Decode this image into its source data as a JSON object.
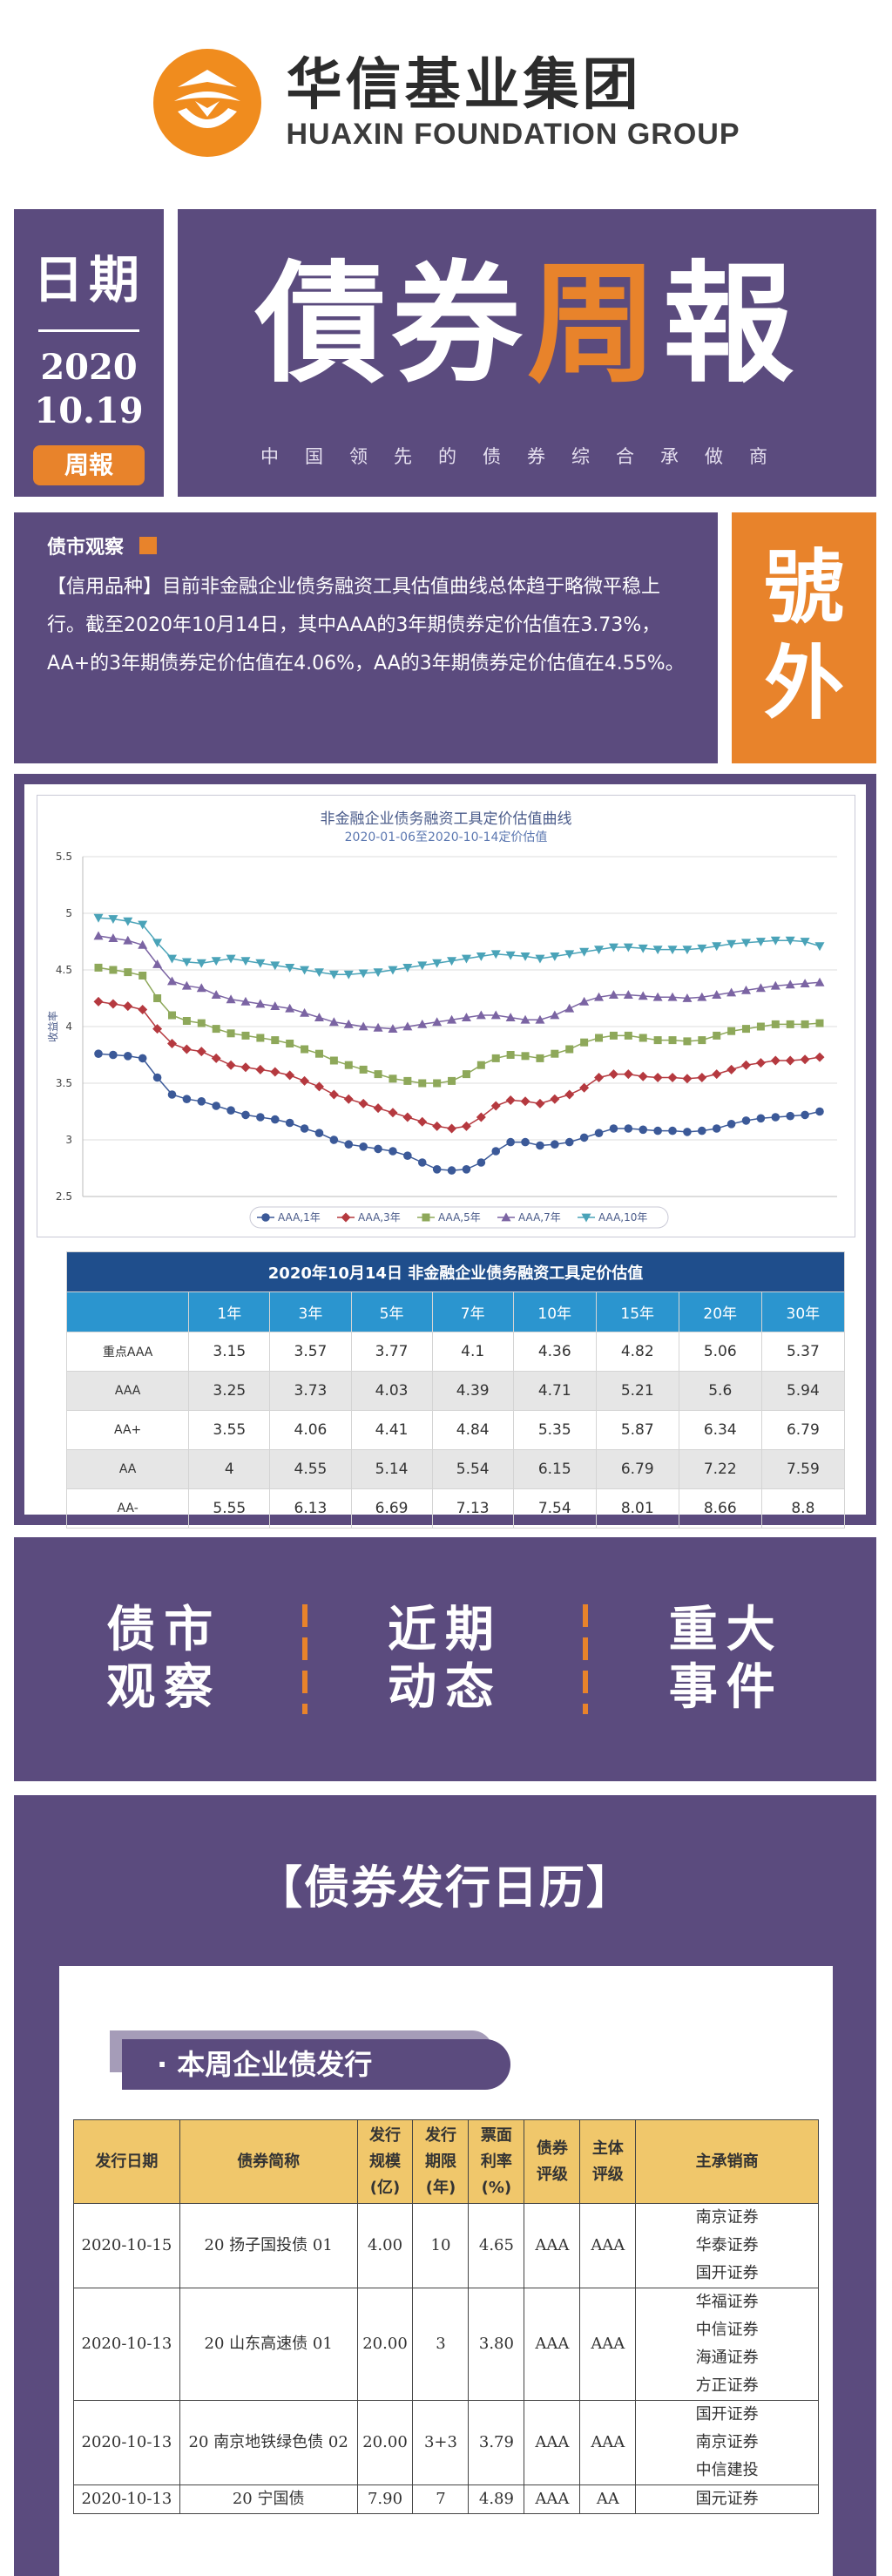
{
  "header": {
    "brand_cn": "华信基业集团",
    "brand_en": "HUAXIN FOUNDATION GROUP",
    "brand_color": "#f08c1e"
  },
  "banner": {
    "date_label": "日期",
    "year": "2020",
    "month_day": "10.19",
    "tag": "周報",
    "title_part1": "債券",
    "title_accent": "周",
    "title_part2": "報",
    "subtitle": "中国领先的债券综合承做商",
    "side_tag": "號外"
  },
  "observation": {
    "heading": "债市观察",
    "text": "【信用品种】目前非金融企业债务融资工具估值曲线总体趋于略微平稳上行。截至2020年10月14日，其中AAA的3年期债券定价估值在3.73%，AA+的3年期债券定价估值在4.06%，AA的3年期债券定价估值在4.55%。"
  },
  "chart_data": {
    "type": "line",
    "title": "非金融企业债务融资工具定价估值曲线",
    "subtitle": "2020-01-06至2020-10-14定价估值",
    "ylabel": "收益率",
    "xlabel": "",
    "ylim": [
      2.5,
      5.5
    ],
    "yticks": [
      "5.5",
      "5",
      "4.5",
      "4",
      "3.5",
      "3",
      "2.5"
    ],
    "grid": true,
    "legend": "bottom",
    "series": [
      {
        "name": "AAA,1年",
        "color": "#3b5998",
        "marker": "circle",
        "values": [
          3.76,
          3.75,
          3.74,
          3.72,
          3.55,
          3.4,
          3.36,
          3.34,
          3.3,
          3.26,
          3.22,
          3.2,
          3.18,
          3.15,
          3.1,
          3.06,
          3.0,
          2.96,
          2.94,
          2.92,
          2.9,
          2.86,
          2.8,
          2.74,
          2.73,
          2.74,
          2.8,
          2.9,
          2.98,
          2.98,
          2.95,
          2.96,
          2.98,
          3.02,
          3.06,
          3.1,
          3.1,
          3.09,
          3.08,
          3.08,
          3.07,
          3.08,
          3.1,
          3.14,
          3.17,
          3.19,
          3.2,
          3.21,
          3.22,
          3.25
        ]
      },
      {
        "name": "AAA,3年",
        "color": "#b5393f",
        "marker": "diamond",
        "values": [
          4.22,
          4.2,
          4.18,
          4.15,
          3.98,
          3.85,
          3.8,
          3.78,
          3.72,
          3.66,
          3.64,
          3.62,
          3.6,
          3.57,
          3.52,
          3.47,
          3.4,
          3.36,
          3.32,
          3.28,
          3.24,
          3.2,
          3.16,
          3.12,
          3.1,
          3.12,
          3.2,
          3.3,
          3.35,
          3.34,
          3.32,
          3.36,
          3.4,
          3.46,
          3.55,
          3.58,
          3.58,
          3.56,
          3.55,
          3.55,
          3.54,
          3.55,
          3.58,
          3.62,
          3.66,
          3.68,
          3.7,
          3.7,
          3.71,
          3.73
        ]
      },
      {
        "name": "AAA,5年",
        "color": "#8ea85a",
        "marker": "square",
        "values": [
          4.52,
          4.5,
          4.48,
          4.45,
          4.25,
          4.1,
          4.05,
          4.03,
          3.98,
          3.94,
          3.92,
          3.9,
          3.88,
          3.85,
          3.8,
          3.76,
          3.7,
          3.66,
          3.62,
          3.58,
          3.54,
          3.52,
          3.5,
          3.5,
          3.52,
          3.58,
          3.66,
          3.72,
          3.75,
          3.74,
          3.72,
          3.76,
          3.8,
          3.86,
          3.9,
          3.92,
          3.92,
          3.9,
          3.88,
          3.88,
          3.87,
          3.88,
          3.92,
          3.96,
          3.98,
          4.0,
          4.02,
          4.02,
          4.02,
          4.03
        ]
      },
      {
        "name": "AAA,7年",
        "color": "#7b64a3",
        "marker": "triangle-up",
        "values": [
          4.8,
          4.78,
          4.76,
          4.72,
          4.55,
          4.4,
          4.36,
          4.34,
          4.28,
          4.24,
          4.22,
          4.2,
          4.18,
          4.16,
          4.12,
          4.08,
          4.04,
          4.02,
          4.0,
          3.99,
          3.98,
          4.0,
          4.02,
          4.04,
          4.06,
          4.08,
          4.1,
          4.1,
          4.08,
          4.06,
          4.06,
          4.1,
          4.16,
          4.22,
          4.26,
          4.28,
          4.28,
          4.27,
          4.26,
          4.26,
          4.25,
          4.26,
          4.28,
          4.3,
          4.32,
          4.34,
          4.36,
          4.37,
          4.38,
          4.39
        ]
      },
      {
        "name": "AAA,10年",
        "color": "#4aa3b8",
        "marker": "triangle-down",
        "values": [
          4.96,
          4.95,
          4.93,
          4.9,
          4.74,
          4.6,
          4.57,
          4.56,
          4.58,
          4.6,
          4.58,
          4.56,
          4.54,
          4.52,
          4.5,
          4.48,
          4.46,
          4.46,
          4.47,
          4.48,
          4.5,
          4.52,
          4.54,
          4.56,
          4.58,
          4.6,
          4.62,
          4.64,
          4.63,
          4.62,
          4.6,
          4.62,
          4.64,
          4.66,
          4.68,
          4.7,
          4.7,
          4.69,
          4.68,
          4.68,
          4.68,
          4.69,
          4.71,
          4.73,
          4.74,
          4.75,
          4.76,
          4.76,
          4.75,
          4.71
        ]
      }
    ]
  },
  "valuation_table": {
    "caption": "2020年10月14日  非金融企业债务融资工具定价估值",
    "terms": [
      "1年",
      "3年",
      "5年",
      "7年",
      "10年",
      "15年",
      "20年",
      "30年"
    ],
    "rows": [
      {
        "rating": "重点AAA",
        "values": [
          "3.15",
          "3.57",
          "3.77",
          "4.1",
          "4.36",
          "4.82",
          "5.06",
          "5.37"
        ]
      },
      {
        "rating": "AAA",
        "values": [
          "3.25",
          "3.73",
          "4.03",
          "4.39",
          "4.71",
          "5.21",
          "5.6",
          "5.94"
        ]
      },
      {
        "rating": "AA+",
        "values": [
          "3.55",
          "4.06",
          "4.41",
          "4.84",
          "5.35",
          "5.87",
          "6.34",
          "6.79"
        ]
      },
      {
        "rating": "AA",
        "values": [
          "4",
          "4.55",
          "5.14",
          "5.54",
          "6.15",
          "6.79",
          "7.22",
          "7.59"
        ]
      },
      {
        "rating": "AA-",
        "values": [
          "5.55",
          "6.13",
          "6.69",
          "7.13",
          "7.54",
          "8.01",
          "8.66",
          "8.8"
        ]
      }
    ]
  },
  "menu": {
    "items": [
      {
        "line1": "债市",
        "line2": "观察"
      },
      {
        "line1": "近期",
        "line2": "动态"
      },
      {
        "line1": "重大",
        "line2": "事件"
      }
    ]
  },
  "calendar": {
    "title": "【债券发行日历】",
    "section": "· 本周企业债发行",
    "headers": {
      "date": "发行日期",
      "name": "债券简称",
      "size": [
        "发行",
        "规模",
        "(亿)"
      ],
      "term": [
        "发行",
        "期限",
        "(年)"
      ],
      "rate": [
        "票面",
        "利率",
        "(%)"
      ],
      "bond_rating": [
        "债券",
        "评级"
      ],
      "issuer_rating": [
        "主体",
        "评级"
      ],
      "underwriter": "主承销商"
    },
    "rows": [
      {
        "date": "2020-10-15",
        "name": "20 扬子国投债 01",
        "size": "4.00",
        "term": "10",
        "rate": "4.65",
        "bond_rating": "AAA",
        "issuer_rating": "AAA",
        "underwriters": [
          "南京证券",
          "华泰证券",
          "国开证券"
        ]
      },
      {
        "date": "2020-10-13",
        "name": "20 山东高速债 01",
        "size": "20.00",
        "term": "3",
        "rate": "3.80",
        "bond_rating": "AAA",
        "issuer_rating": "AAA",
        "underwriters": [
          "华福证券",
          "中信证券",
          "海通证券",
          "方正证券"
        ]
      },
      {
        "date": "2020-10-13",
        "name": "20 南京地铁绿色债 02",
        "size": "20.00",
        "term": "3+3",
        "rate": "3.79",
        "bond_rating": "AAA",
        "issuer_rating": "AAA",
        "underwriters": [
          "国开证券",
          "南京证券",
          "中信建投"
        ]
      },
      {
        "date": "2020-10-13",
        "name": "20 宁国债",
        "size": "7.90",
        "term": "7",
        "rate": "4.89",
        "bond_rating": "AAA",
        "issuer_rating": "AA",
        "underwriters": [
          "国元证券"
        ]
      }
    ]
  }
}
